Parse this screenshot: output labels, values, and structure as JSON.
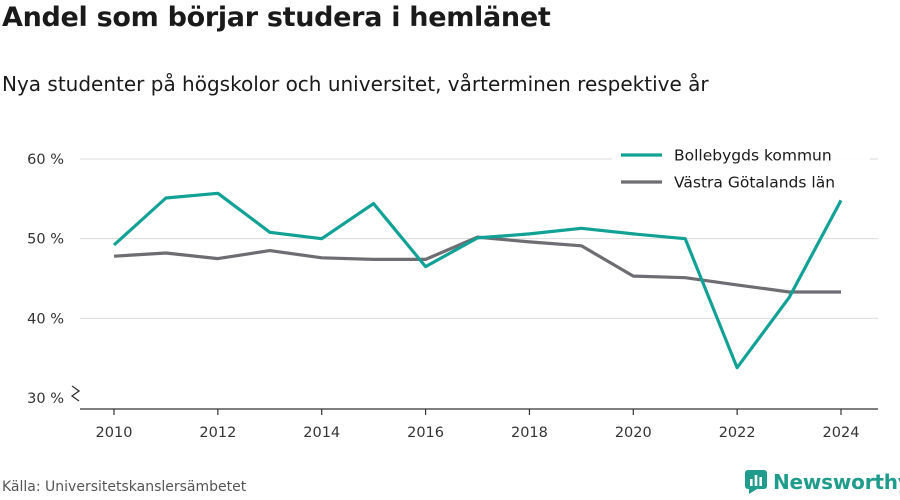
{
  "header": {
    "title": "Andel som börjar studera i hemlänet",
    "subtitle": "Nya studenter på högskolor och universitet, vårterminen respektive år"
  },
  "footer": {
    "source": "Källa: Universitetskanslersämbetet",
    "brand": "Newsworthy",
    "brand_color": "#1f9c8c"
  },
  "chart_data": {
    "type": "line",
    "x": [
      2010,
      2011,
      2012,
      2013,
      2014,
      2015,
      2016,
      2017,
      2018,
      2019,
      2020,
      2021,
      2022,
      2023,
      2024
    ],
    "series": [
      {
        "name": "Bollebygds kommun",
        "color": "#12a195",
        "values": [
          49.2,
          55.1,
          55.7,
          50.8,
          50.0,
          54.4,
          46.5,
          50.1,
          50.6,
          51.3,
          50.6,
          50.0,
          33.8,
          42.6,
          54.8
        ]
      },
      {
        "name": "Västra Götalands län",
        "color": "#6d6d72",
        "values": [
          47.8,
          48.2,
          47.5,
          48.5,
          47.6,
          47.4,
          47.4,
          50.2,
          49.6,
          49.1,
          45.3,
          45.1,
          44.2,
          43.3,
          43.3
        ]
      }
    ],
    "y_ticks": [
      {
        "value": 30,
        "label": "30 %"
      },
      {
        "value": 40,
        "label": "40 %"
      },
      {
        "value": 50,
        "label": "50 %"
      },
      {
        "value": 60,
        "label": "60 %"
      }
    ],
    "x_ticks": [
      2010,
      2012,
      2014,
      2016,
      2018,
      2020,
      2022,
      2024
    ],
    "ylim": [
      30,
      60
    ],
    "axis_break": true,
    "grid": true,
    "legend_position": "top-right"
  }
}
